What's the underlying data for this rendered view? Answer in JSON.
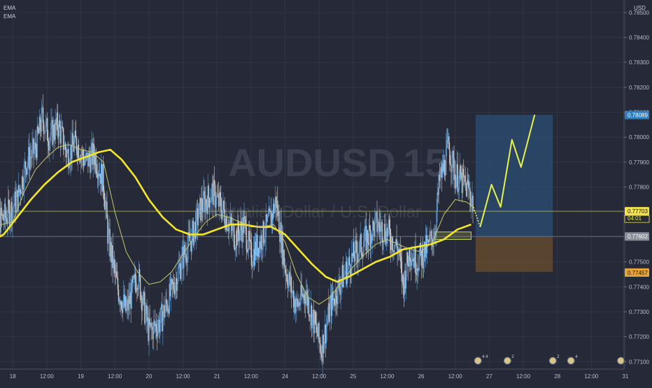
{
  "chart_data": {
    "type": "candlestick",
    "symbol": "AUDUSD",
    "interval": "15",
    "instrument_name": "Australian Dollar / U.S. Dollar",
    "currency": "USD",
    "indicators": [
      "EMA",
      "EMA"
    ],
    "y_ticks": [
      "0.78500",
      "0.78400",
      "0.78300",
      "0.78200",
      "0.78100",
      "0.78000",
      "0.77900",
      "0.77800",
      "0.77700",
      "0.77600",
      "0.77500",
      "0.77400",
      "0.77300",
      "0.77200",
      "0.77100"
    ],
    "ylim": [
      0.7707,
      0.7855
    ],
    "x_ticks": [
      {
        "label": "18",
        "x": 18
      },
      {
        "label": "12:00",
        "x": 19.5
      },
      {
        "label": "19",
        "x": 21
      },
      {
        "label": "12:00",
        "x": 22.5
      },
      {
        "label": "20",
        "x": 24
      },
      {
        "label": "12:00",
        "x": 25.5
      },
      {
        "label": "21",
        "x": 27
      },
      {
        "label": "12:00",
        "x": 28.5
      },
      {
        "label": "24",
        "x": 30
      },
      {
        "label": "12:00",
        "x": 31.5
      },
      {
        "label": "25",
        "x": 33
      },
      {
        "label": "12:00",
        "x": 34.5
      },
      {
        "label": "26",
        "x": 36
      },
      {
        "label": "12:00",
        "x": 37.5
      },
      {
        "label": "27",
        "x": 39
      },
      {
        "label": "12:00",
        "x": 40.5
      },
      {
        "label": "28",
        "x": 42
      },
      {
        "label": "12:00",
        "x": 43.5
      },
      {
        "label": "31",
        "x": 45
      }
    ],
    "price_markers": [
      {
        "label": "0.78089",
        "value": 0.78089,
        "color": "#2e7fbd"
      },
      {
        "label": "0.77703",
        "value": 0.77703,
        "color": "#f2e14b",
        "sub": "04:01"
      },
      {
        "label": "0.77602",
        "value": 0.77602,
        "color": "#8a8f99"
      },
      {
        "label": "0.77457",
        "value": 0.77457,
        "color": "#e8a33c"
      }
    ],
    "price_path": [
      [
        17.0,
        0.7765
      ],
      [
        17.7,
        0.7768
      ],
      [
        18.2,
        0.7775
      ],
      [
        18.6,
        0.779
      ],
      [
        19.0,
        0.7795
      ],
      [
        19.3,
        0.7808
      ],
      [
        19.6,
        0.78
      ],
      [
        20.0,
        0.7805
      ],
      [
        20.4,
        0.7793
      ],
      [
        20.8,
        0.7798
      ],
      [
        21.2,
        0.779
      ],
      [
        21.6,
        0.7793
      ],
      [
        22.0,
        0.7782
      ],
      [
        22.2,
        0.776
      ],
      [
        22.6,
        0.774
      ],
      [
        23.0,
        0.773
      ],
      [
        23.5,
        0.7745
      ],
      [
        24.0,
        0.7722
      ],
      [
        24.5,
        0.7726
      ],
      [
        25.0,
        0.7738
      ],
      [
        25.5,
        0.7752
      ],
      [
        25.9,
        0.776
      ],
      [
        26.3,
        0.7772
      ],
      [
        26.8,
        0.7778
      ],
      [
        27.3,
        0.777
      ],
      [
        27.8,
        0.776
      ],
      [
        28.2,
        0.7765
      ],
      [
        28.5,
        0.7752
      ],
      [
        29.0,
        0.776
      ],
      [
        29.4,
        0.7768
      ],
      [
        29.6,
        0.7775
      ],
      [
        30.0,
        0.7748
      ],
      [
        30.5,
        0.7732
      ],
      [
        30.9,
        0.7738
      ],
      [
        31.3,
        0.7725
      ],
      [
        31.6,
        0.7715
      ],
      [
        32.0,
        0.7732
      ],
      [
        32.5,
        0.7743
      ],
      [
        33.0,
        0.7752
      ],
      [
        33.5,
        0.7758
      ],
      [
        34.0,
        0.7765
      ],
      [
        34.5,
        0.7762
      ],
      [
        35.0,
        0.7755
      ],
      [
        35.2,
        0.774
      ],
      [
        35.5,
        0.7755
      ],
      [
        35.8,
        0.775
      ],
      [
        36.3,
        0.7756
      ],
      [
        36.6,
        0.7762
      ],
      [
        36.8,
        0.7782
      ],
      [
        37.0,
        0.7788
      ],
      [
        37.2,
        0.7796
      ],
      [
        37.5,
        0.7785
      ],
      [
        37.8,
        0.7782
      ],
      [
        38.1,
        0.7779
      ],
      [
        38.3,
        0.7773
      ]
    ],
    "ema_fast": [
      [
        17.0,
        0.7764
      ],
      [
        18.0,
        0.7766
      ],
      [
        18.5,
        0.7778
      ],
      [
        19.0,
        0.7787
      ],
      [
        19.5,
        0.7792
      ],
      [
        20.0,
        0.7796
      ],
      [
        20.5,
        0.7797
      ],
      [
        21.0,
        0.7795
      ],
      [
        21.5,
        0.7794
      ],
      [
        22.0,
        0.779
      ],
      [
        22.5,
        0.777
      ],
      [
        23.0,
        0.7754
      ],
      [
        23.5,
        0.7746
      ],
      [
        24.0,
        0.7741
      ],
      [
        24.5,
        0.7742
      ],
      [
        25.0,
        0.7746
      ],
      [
        25.5,
        0.7753
      ],
      [
        26.0,
        0.776
      ],
      [
        26.5,
        0.7766
      ],
      [
        27.0,
        0.7769
      ],
      [
        27.5,
        0.7768
      ],
      [
        28.0,
        0.7766
      ],
      [
        28.5,
        0.7764
      ],
      [
        29.0,
        0.7764
      ],
      [
        29.5,
        0.7765
      ],
      [
        30.0,
        0.7758
      ],
      [
        30.5,
        0.7745
      ],
      [
        31.0,
        0.7736
      ],
      [
        31.5,
        0.7733
      ],
      [
        32.0,
        0.7736
      ],
      [
        32.5,
        0.7742
      ],
      [
        33.0,
        0.7748
      ],
      [
        33.5,
        0.7753
      ],
      [
        34.0,
        0.7757
      ],
      [
        34.5,
        0.7759
      ],
      [
        35.0,
        0.7757
      ],
      [
        35.5,
        0.7755
      ],
      [
        36.0,
        0.7754
      ],
      [
        36.5,
        0.7758
      ],
      [
        37.0,
        0.7769
      ],
      [
        37.5,
        0.7775
      ],
      [
        38.0,
        0.7774
      ],
      [
        38.3,
        0.7772
      ]
    ],
    "ema_slow": [
      [
        17.0,
        0.7758
      ],
      [
        17.6,
        0.7761
      ],
      [
        18.2,
        0.7768
      ],
      [
        18.8,
        0.7775
      ],
      [
        19.4,
        0.7781
      ],
      [
        20.0,
        0.7786
      ],
      [
        20.6,
        0.779
      ],
      [
        21.2,
        0.7792
      ],
      [
        21.8,
        0.7794
      ],
      [
        22.3,
        0.7795
      ],
      [
        22.8,
        0.7791
      ],
      [
        23.4,
        0.7784
      ],
      [
        24.0,
        0.7775
      ],
      [
        24.6,
        0.7768
      ],
      [
        25.2,
        0.7763
      ],
      [
        25.8,
        0.7761
      ],
      [
        26.4,
        0.7761
      ],
      [
        27.0,
        0.7763
      ],
      [
        27.6,
        0.7765
      ],
      [
        28.2,
        0.7765
      ],
      [
        28.8,
        0.7764
      ],
      [
        29.4,
        0.7764
      ],
      [
        30.0,
        0.7761
      ],
      [
        30.6,
        0.7755
      ],
      [
        31.2,
        0.7749
      ],
      [
        31.8,
        0.7744
      ],
      [
        32.3,
        0.7742
      ],
      [
        32.8,
        0.7744
      ],
      [
        33.4,
        0.7747
      ],
      [
        34.0,
        0.775
      ],
      [
        34.6,
        0.7752
      ],
      [
        35.2,
        0.7755
      ],
      [
        35.8,
        0.7756
      ],
      [
        36.4,
        0.7757
      ],
      [
        37.0,
        0.7759
      ],
      [
        37.6,
        0.7763
      ],
      [
        38.2,
        0.7765
      ]
    ],
    "projection": [
      [
        38.3,
        0.7772
      ],
      [
        38.6,
        0.7764
      ],
      [
        39.1,
        0.7781
      ],
      [
        39.5,
        0.7772
      ],
      [
        40.0,
        0.7799
      ],
      [
        40.4,
        0.7788
      ],
      [
        41.0,
        0.7809
      ]
    ],
    "target_box": {
      "x_from": 38.4,
      "x_to": 41.8,
      "y_from": 0.776,
      "y_to": 0.7809
    },
    "stop_box": {
      "x_from": 38.4,
      "x_to": 41.8,
      "y_from": 0.7746,
      "y_to": 0.776
    },
    "entry_zone": {
      "x_from": 36.6,
      "x_to": 38.2,
      "y_from": 0.7759,
      "y_to": 0.7762
    },
    "horizontal_lines": [
      0.77703,
      0.77602
    ],
    "event_markers": [
      {
        "x": 38.5,
        "label": "4 4"
      },
      {
        "x": 39.8,
        "label": "2"
      },
      {
        "x": 41.8,
        "label": "2"
      },
      {
        "x": 42.6,
        "label": "4"
      },
      {
        "x": 44.8,
        "label": ""
      }
    ]
  }
}
